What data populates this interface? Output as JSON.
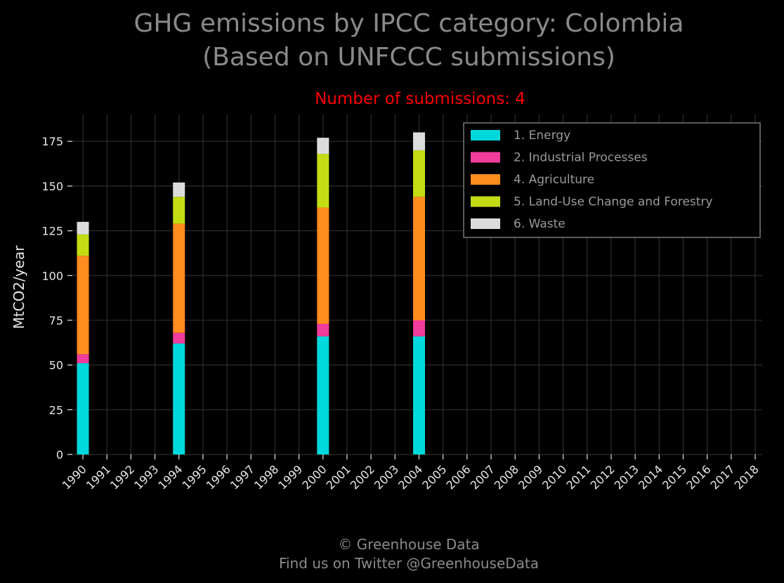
{
  "page": {
    "title_line1": "GHG emissions by IPCC category: Colombia",
    "title_line2": "(Based on UNFCCC submissions)",
    "footer_line1": "© Greenhouse Data",
    "footer_line2": "Find us on Twitter @GreenhouseData"
  },
  "chart_data": {
    "type": "bar",
    "stacked": true,
    "title": "GHG emissions by IPCC category: Colombia\n(Based on UNFCCC submissions)",
    "subtitle": "Number of submissions: 4",
    "xlabel": "",
    "ylabel": "MtCO2/year",
    "ylim": [
      0,
      190
    ],
    "yticks": [
      0,
      25,
      50,
      75,
      100,
      125,
      150,
      175
    ],
    "grid": true,
    "legend_position": "top-right",
    "categories": [
      "1990",
      "1991",
      "1992",
      "1993",
      "1994",
      "1995",
      "1996",
      "1997",
      "1998",
      "1999",
      "2000",
      "2001",
      "2002",
      "2003",
      "2004",
      "2005",
      "2006",
      "2007",
      "2008",
      "2009",
      "2010",
      "2011",
      "2012",
      "2013",
      "2014",
      "2015",
      "2016",
      "2017",
      "2018"
    ],
    "series": [
      {
        "name": "1. Energy",
        "color": "#00d8dc",
        "values": [
          51,
          0,
          0,
          0,
          62,
          0,
          0,
          0,
          0,
          0,
          66,
          0,
          0,
          0,
          66,
          0,
          0,
          0,
          0,
          0,
          0,
          0,
          0,
          0,
          0,
          0,
          0,
          0,
          0
        ]
      },
      {
        "name": "2. Industrial Processes",
        "color": "#f03c9c",
        "values": [
          5,
          0,
          0,
          0,
          6,
          0,
          0,
          0,
          0,
          0,
          7,
          0,
          0,
          0,
          9,
          0,
          0,
          0,
          0,
          0,
          0,
          0,
          0,
          0,
          0,
          0,
          0,
          0,
          0
        ]
      },
      {
        "name": "4. Agriculture",
        "color": "#ff8c1e",
        "values": [
          55,
          0,
          0,
          0,
          61,
          0,
          0,
          0,
          0,
          0,
          65,
          0,
          0,
          0,
          69,
          0,
          0,
          0,
          0,
          0,
          0,
          0,
          0,
          0,
          0,
          0,
          0,
          0,
          0
        ]
      },
      {
        "name": "5. Land-Use Change and Forestry",
        "color": "#c3dc14",
        "values": [
          12,
          0,
          0,
          0,
          15,
          0,
          0,
          0,
          0,
          0,
          30,
          0,
          0,
          0,
          26,
          0,
          0,
          0,
          0,
          0,
          0,
          0,
          0,
          0,
          0,
          0,
          0,
          0,
          0
        ]
      },
      {
        "name": "6. Waste",
        "color": "#dcdcdc",
        "values": [
          7,
          0,
          0,
          0,
          8,
          0,
          0,
          0,
          0,
          0,
          9,
          0,
          0,
          0,
          10,
          0,
          0,
          0,
          0,
          0,
          0,
          0,
          0,
          0,
          0,
          0,
          0,
          0,
          0
        ]
      }
    ]
  }
}
